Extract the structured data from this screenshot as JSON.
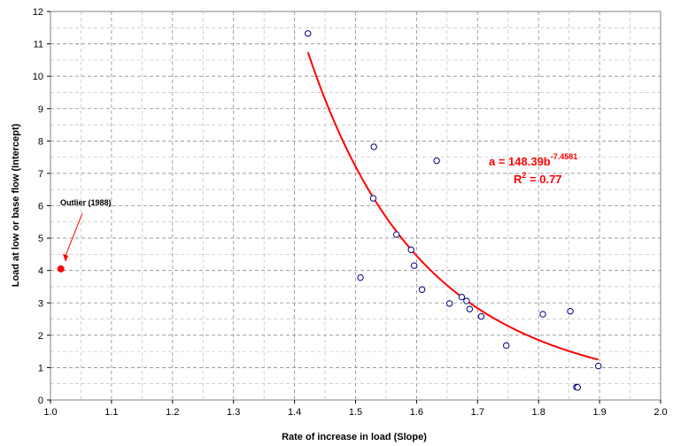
{
  "chart_data": {
    "type": "scatter",
    "title": "",
    "xlabel": "Rate of increase in load (Slope)",
    "ylabel": "Load at low or base flow (Intercept)",
    "xlim": [
      1.0,
      2.0
    ],
    "ylim": [
      0,
      12
    ],
    "x_ticks": [
      "1.0",
      "1.1",
      "1.2",
      "1.3",
      "1.4",
      "1.5",
      "1.6",
      "1.7",
      "1.8",
      "1.9",
      "2.0"
    ],
    "y_ticks": [
      "0",
      "1",
      "2",
      "3",
      "4",
      "5",
      "6",
      "7",
      "8",
      "9",
      "10",
      "11",
      "12"
    ],
    "grid": true,
    "series": [
      {
        "marker": "open-circle",
        "color": "#00007f",
        "points": [
          {
            "x": 1.422,
            "y": 11.32
          },
          {
            "x": 1.53,
            "y": 7.82
          },
          {
            "x": 1.633,
            "y": 7.39
          },
          {
            "x": 1.529,
            "y": 6.23
          },
          {
            "x": 1.567,
            "y": 5.11
          },
          {
            "x": 1.591,
            "y": 4.64
          },
          {
            "x": 1.596,
            "y": 4.15
          },
          {
            "x": 1.508,
            "y": 3.78
          },
          {
            "x": 1.609,
            "y": 3.41
          },
          {
            "x": 1.674,
            "y": 3.18
          },
          {
            "x": 1.682,
            "y": 3.06
          },
          {
            "x": 1.654,
            "y": 2.98
          },
          {
            "x": 1.687,
            "y": 2.81
          },
          {
            "x": 1.706,
            "y": 2.58
          },
          {
            "x": 1.807,
            "y": 2.65
          },
          {
            "x": 1.852,
            "y": 2.74
          },
          {
            "x": 1.747,
            "y": 1.68
          },
          {
            "x": 1.898,
            "y": 1.05
          },
          {
            "x": 1.862,
            "y": 0.4
          },
          {
            "x": 1.864,
            "y": 0.39
          }
        ]
      },
      {
        "name": "Outlier (1988)",
        "marker": "filled-circle",
        "color": "#ff0000",
        "points": [
          {
            "x": 1.017,
            "y": 4.05
          }
        ]
      }
    ],
    "trendline": {
      "type": "power",
      "coefficient": 148.39,
      "exponent": -7.4581,
      "x_from": 1.422,
      "x_to": 1.898,
      "color": "#ff0000"
    },
    "annotations": {
      "outlier_label": "Outlier (1988)",
      "equation_main": "a = 148.39b",
      "equation_exponent": "-7.4581",
      "r2_prefix": "R",
      "r2_sup": "2",
      "r2_value": " = 0.77"
    }
  },
  "colors": {
    "grid": "#8c8c8c",
    "frame": "#808080",
    "trend": "#ff0000",
    "points": "#00007f",
    "equation": "#ff0000"
  }
}
